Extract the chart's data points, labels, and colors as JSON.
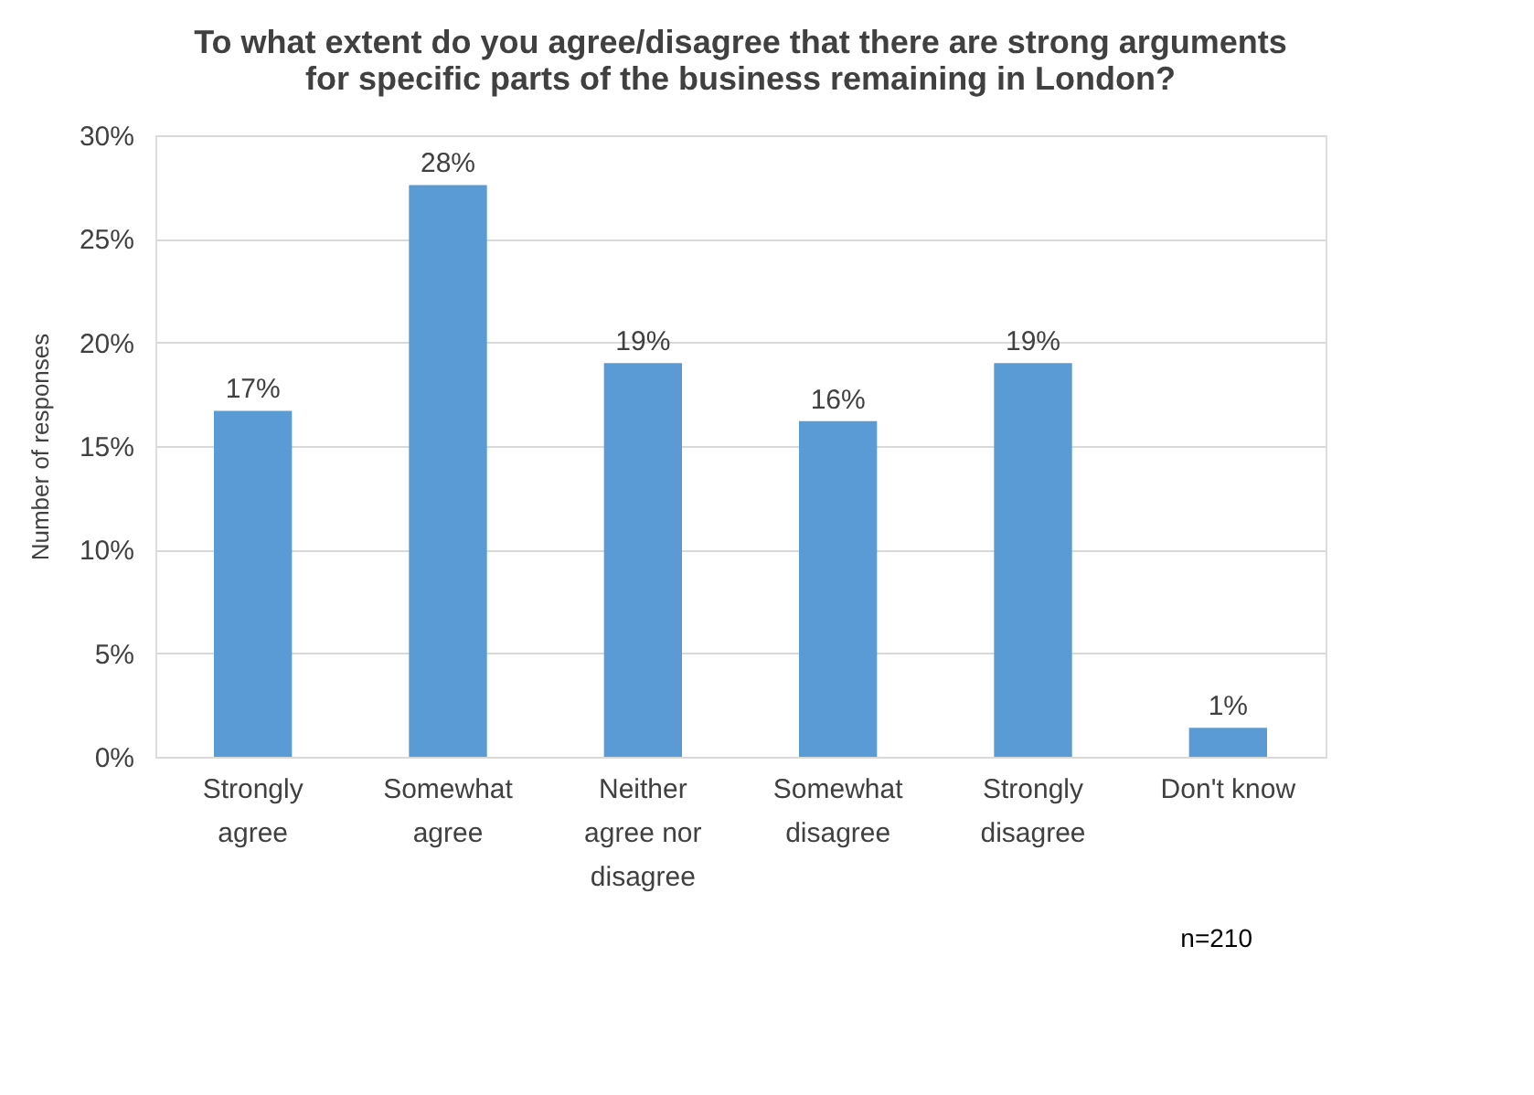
{
  "chart_data": {
    "type": "bar",
    "title": "To what extent do you agree/disagree that there are strong arguments for specific parts of the business remaining in London?",
    "ylabel": "Number of responses",
    "categories": [
      "Strongly agree",
      "Somewhat agree",
      "Neither agree nor disagree",
      "Somewhat disagree",
      "Strongly disagree",
      "Don't know"
    ],
    "values": [
      16.7,
      27.6,
      19.0,
      16.2,
      19.0,
      1.4
    ],
    "value_labels": [
      "17%",
      "28%",
      "19%",
      "16%",
      "19%",
      "1%"
    ],
    "color": "#5b9bd5",
    "ylim": [
      0,
      30
    ],
    "yticks": [
      {
        "value": 0,
        "label": "0%"
      },
      {
        "value": 5,
        "label": "5%"
      },
      {
        "value": 10,
        "label": "10%"
      },
      {
        "value": 15,
        "label": "15%"
      },
      {
        "value": 20,
        "label": "20%"
      },
      {
        "value": 25,
        "label": "25%"
      },
      {
        "value": 30,
        "label": "30%"
      }
    ],
    "grid": "y",
    "annotations": [
      "n=210"
    ]
  }
}
